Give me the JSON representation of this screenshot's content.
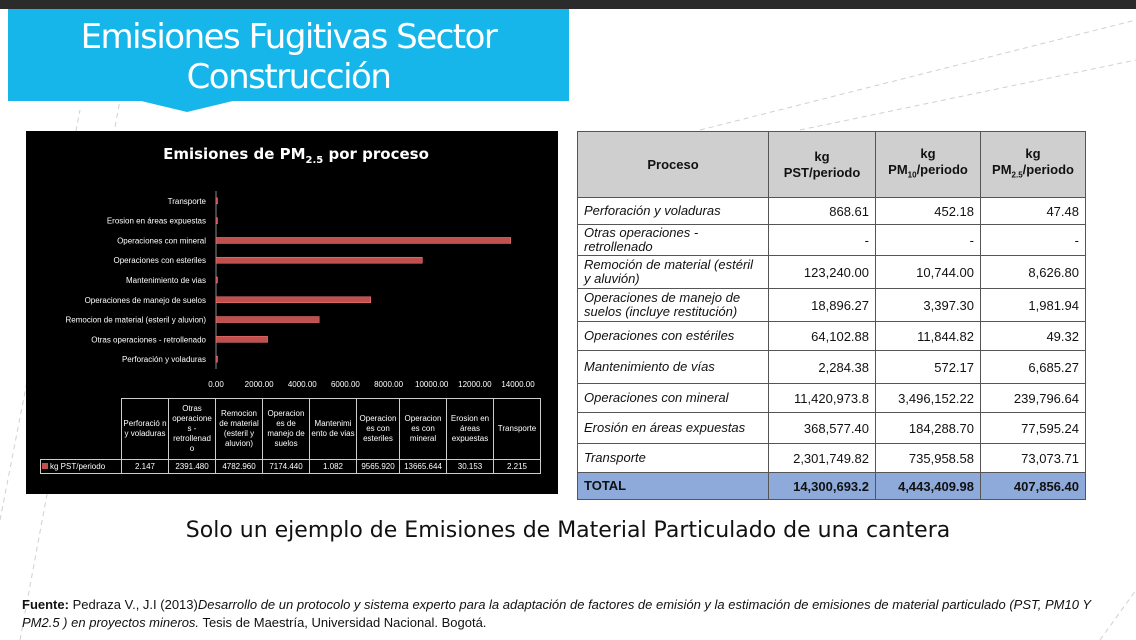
{
  "slide": {
    "title_line1": "Emisiones Fugitivas Sector",
    "title_line2": "Construcción",
    "caption": "Solo un ejemplo de Emisiones de Material Particulado de una cantera",
    "source_label": "Fuente:",
    "source_authors": "Pedraza V., J.I (2013)",
    "source_title": "Desarrollo de un protocolo y sistema experto para la adaptación de factores de emisión y la estimación de emisiones de material particulado (PST, PM10 Y PM2.5 )",
    "source_title_tail": "en proyectos mineros.",
    "source_rest": "Tesis de Maestría, Universidad Nacional. Bogotá."
  },
  "chart_data": {
    "type": "bar",
    "orientation": "horizontal",
    "title": "Emisiones de PM",
    "title_sub": "2.5",
    "title_suffix": "por proceso",
    "xlim": [
      0,
      14000
    ],
    "x_ticks": [
      "0.00",
      "2000.00",
      "4000.00",
      "6000.00",
      "8000.00",
      "10000.00",
      "12000.00",
      "14000.00"
    ],
    "categories": [
      "Perforación y voladuras",
      "Otras operaciones - retrollenado",
      "Remocion de material (esteril y aluvion)",
      "Operaciones de manejo de suelos",
      "Mantenimiento de vias",
      "Operaciones con esteriles",
      "Operaciones con mineral",
      "Erosion en áreas expuestas",
      "Transporte"
    ],
    "series": [
      {
        "name": "kg PST/periodo",
        "values": [
          2.147,
          2391.48,
          4782.96,
          7174.44,
          1.082,
          9565.92,
          13665.644,
          30.153,
          2.215
        ]
      }
    ],
    "bar_color": "#c0504d",
    "table_headers": [
      "Perforació n y voladuras",
      "Otras operacione s - retrollenad o",
      "Remocion de material (esteril y aluvion)",
      "Operacion es de manejo de suelos",
      "Mantenimi ento de vias",
      "Operacion es con esteriles",
      "Operacion es con mineral",
      "Erosion en áreas expuestas",
      "Transporte"
    ],
    "table_values": [
      "2.147",
      "2391.480",
      "4782.960",
      "7174.440",
      "1.082",
      "9565.920",
      "13665.644",
      "30.153",
      "2.215"
    ],
    "legend_label": "kg PST/periodo"
  },
  "table": {
    "headers": [
      "Proceso",
      "kg PST/periodo",
      "kg PM10/periodo",
      "kg PM2.5/periodo"
    ],
    "rows": [
      [
        "Perforación y voladuras",
        "868.61",
        "452.18",
        "47.48"
      ],
      [
        "Otras operaciones - retrollenado",
        "-",
        "-",
        "-"
      ],
      [
        "Remoción de material (estéril y aluvión)",
        "123,240.00",
        "10,744.00",
        "8,626.80"
      ],
      [
        "Operaciones de manejo de suelos (incluye restitución)",
        "18,896.27",
        "3,397.30",
        "1,981.94"
      ],
      [
        "Operaciones con estériles",
        "64,102.88",
        "11,844.82",
        "49.32"
      ],
      [
        "Mantenimiento de vías",
        "2,284.38",
        "572.17",
        "6,685.27"
      ],
      [
        "Operaciones con mineral",
        "11,420,973.8",
        "3,496,152.22",
        "239,796.64"
      ],
      [
        "Erosión en áreas expuestas",
        "368,577.40",
        "184,288.70",
        "77,595.24"
      ],
      [
        "Transporte",
        "2,301,749.82",
        "735,958.58",
        "73,073.71"
      ]
    ],
    "total": [
      "TOTAL",
      "14,300,693.2",
      "4,443,409.98",
      "407,856.40"
    ]
  }
}
